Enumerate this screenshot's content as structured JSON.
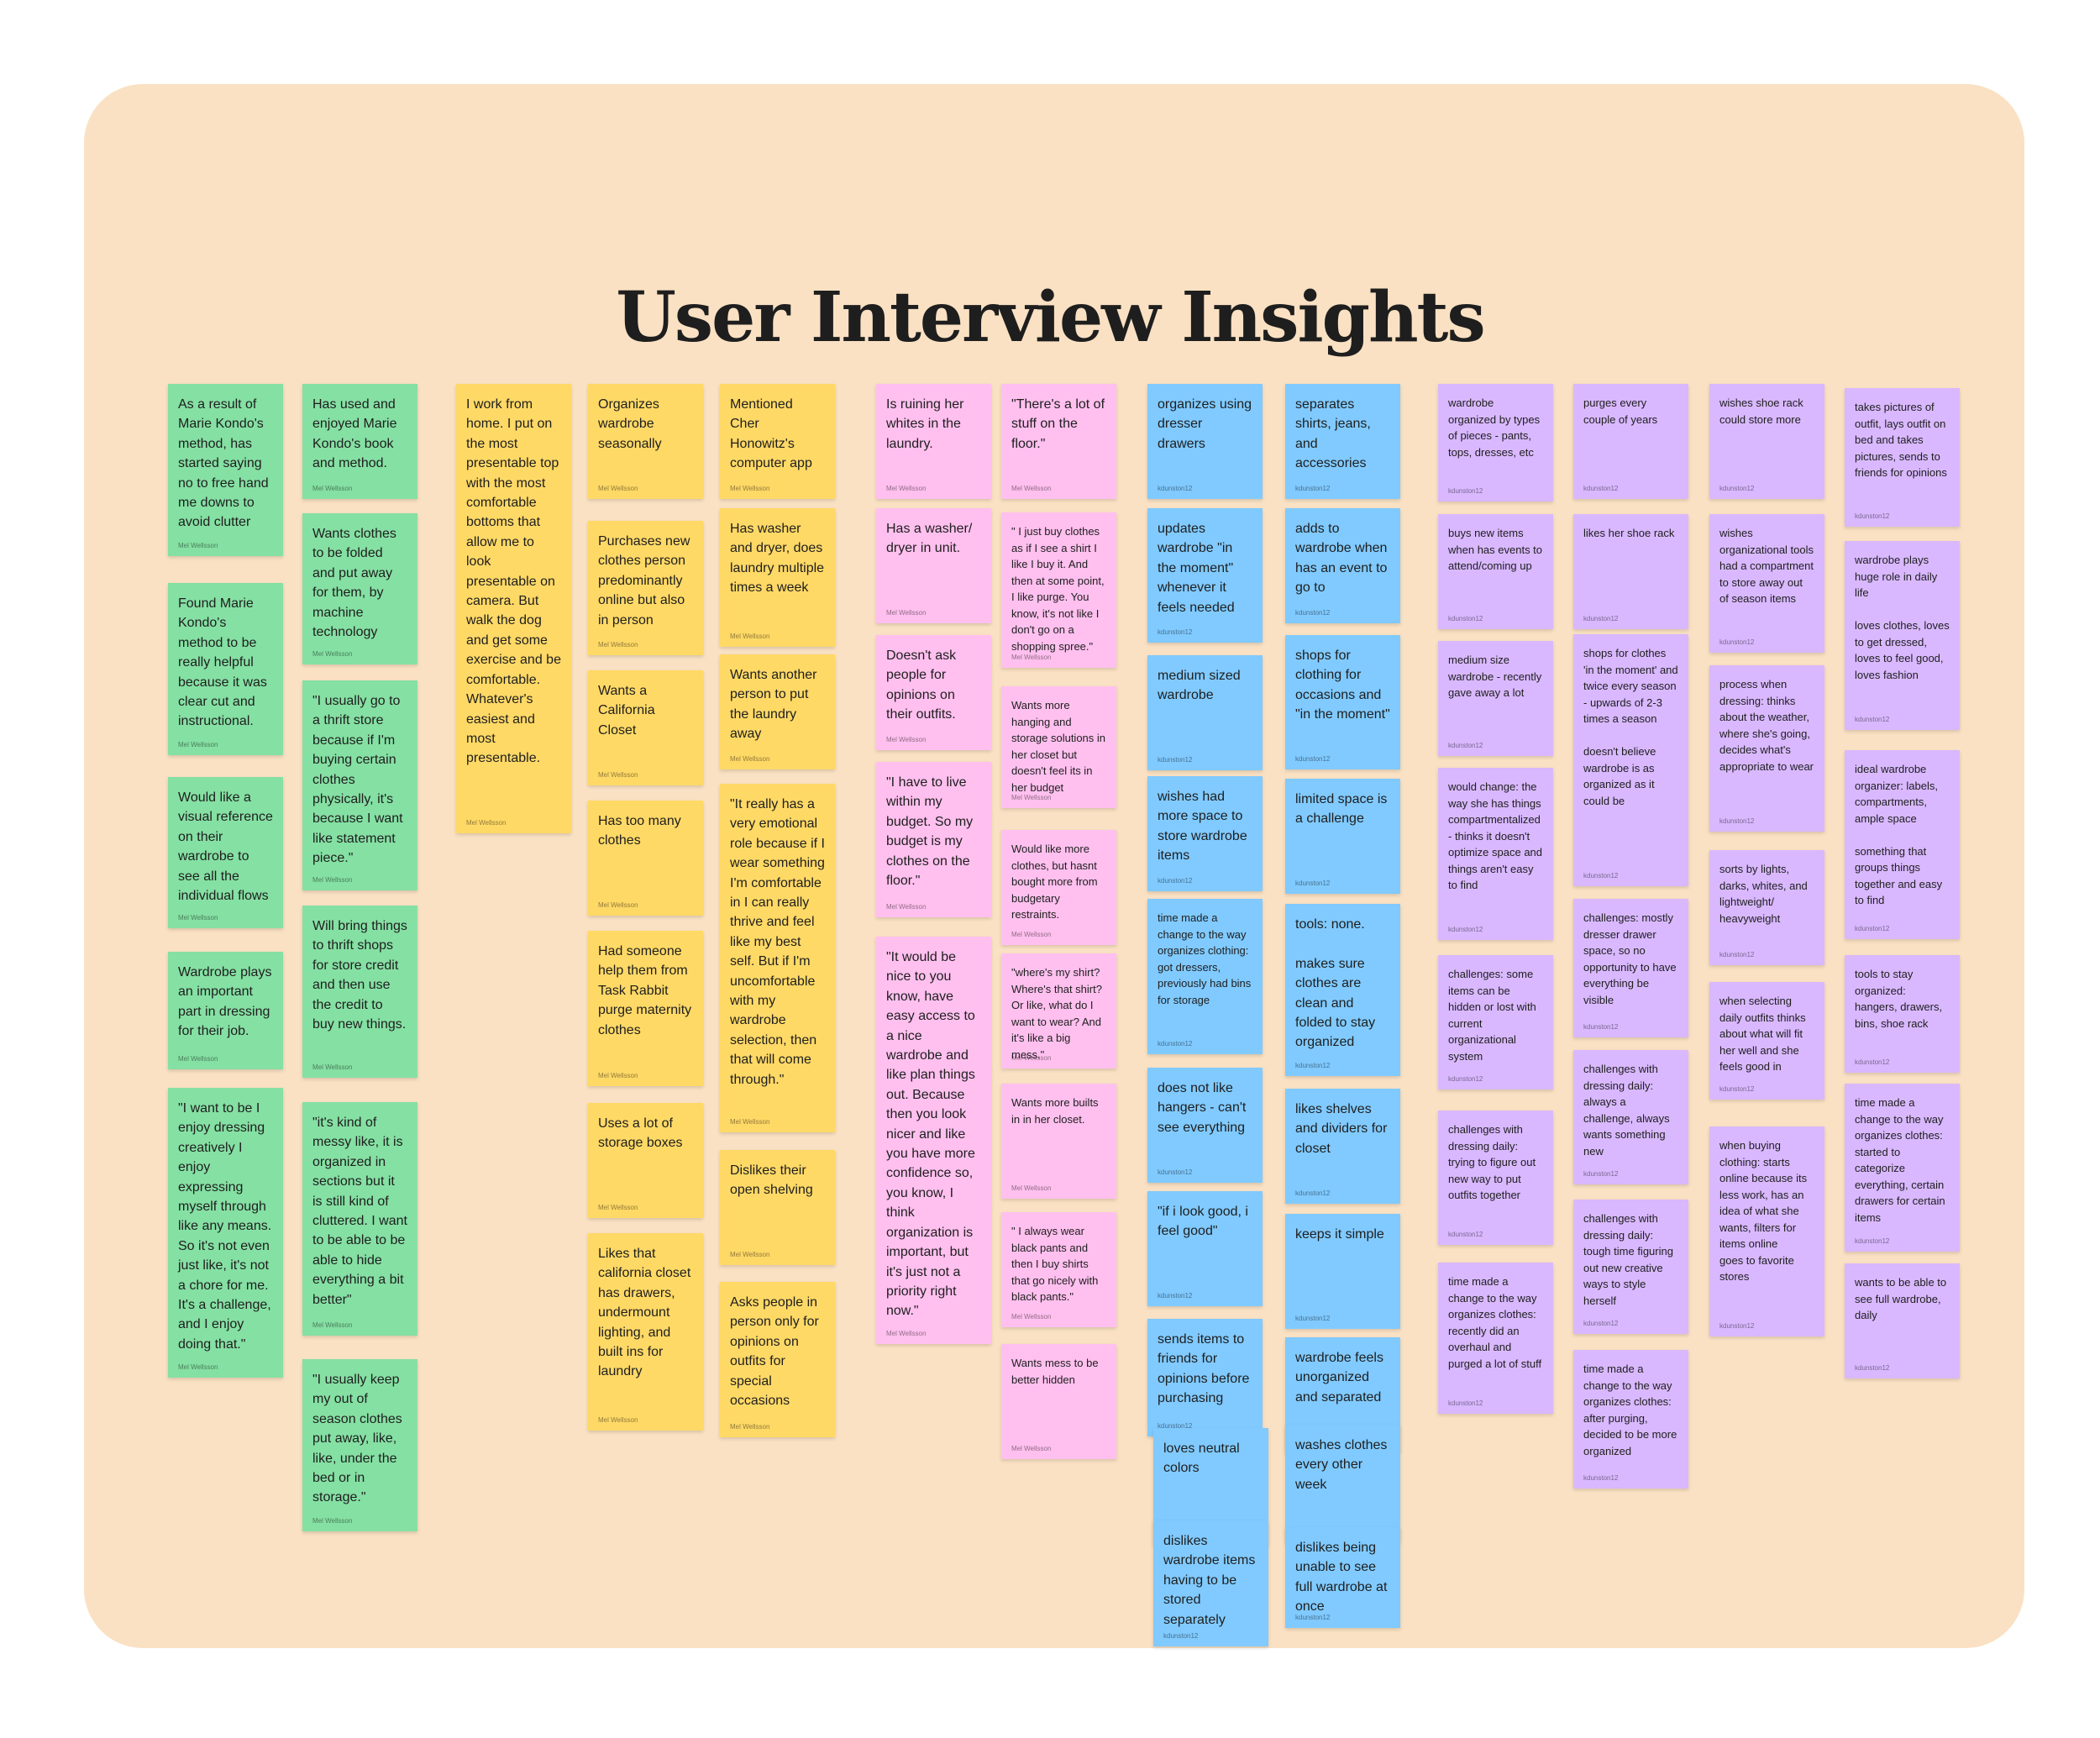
{
  "title": "User Interview Insights",
  "colors": {
    "board_background": "#fae1c3",
    "green": "#85e0a3",
    "yellow": "#ffd966",
    "pink": "#ffc0ef",
    "blue": "#80caff",
    "purple": "#d9b8ff"
  },
  "authors": {
    "mel": "Mel Wellsson",
    "k": "kdunston12"
  },
  "notes": {
    "g1": "As a result of Marie Kondo's method, has started saying no to free hand me downs to avoid clutter",
    "g2": "Found Marie Kondo's method to be really helpful because it was clear cut and instructional.",
    "g3": "Would like a visual reference on their wardrobe to see all the individual flows",
    "g4": "Wardrobe plays an important part in dressing for their job.",
    "g5": "\"I want to be I enjoy dressing creatively I enjoy expressing myself through like any means. So it's not even just like, it's not a chore for me. It's a challenge, and I enjoy doing that.\"",
    "g6": "Has used and enjoyed Marie Kondo's book and method.",
    "g7": "Wants clothes to be folded and put away for them, by machine technology",
    "g8": "\"I usually go to a thrift store because if I'm buying certain clothes physically, it's because I want like statement piece.\"",
    "g9": "Will bring things to thrift shops for store credit and then use the credit to buy new things.",
    "g10": "\"it's kind of messy like, it is organized in sections but it is still kind of cluttered. I want to be able to be able to hide everything a bit better\"",
    "g11": "\"I usually keep my out of season clothes put away, like, like, under the bed or in storage.\"",
    "y1": "I work from home. I put on the most presentable top with the most comfortable bottoms that allow me to look presentable on camera. But walk the dog and get some exercise and be comfortable. Whatever's easiest and most presentable.",
    "y2": "Organizes wardrobe seasonally",
    "y3": "Purchases new clothes person predominantly online but also in person",
    "y4": "Wants a California Closet",
    "y5": "Has too many clothes",
    "y6": "Had someone help them from Task Rabbit purge maternity clothes",
    "y7": "Uses a lot of storage boxes",
    "y8": "Likes that california closet has drawers, undermount lighting, and built ins for laundry",
    "y9": "Mentioned Cher Honowitz's computer app",
    "y10": "Has washer and dryer, does laundry multiple times a week",
    "y11": "Wants another person to put the laundry away",
    "y12": "\"It really has a very emotional role because if I wear something I'm comfortable in I can really thrive and feel like my best self. But if I'm uncomfortable with my wardrobe selection, then that will come through.\"",
    "y13": "Dislikes their open shelving",
    "y14": "Asks people in person only for opinions on outfits for special occasions",
    "p1": "Is ruining her whites in the laundry.",
    "p2": "Has a washer/ dryer in unit.",
    "p3": "Doesn't ask people for opinions on their outfits.",
    "p4": "\"I have to live within my budget. So my budget is my clothes on the floor.\"",
    "p5": "\"It would be nice to you know, have easy access to a nice wardrobe and like plan things out. Because then you look nicer and like you have more confidence so, you know, I think organization is important, but it's just not a priority right now.\"",
    "p6": "\"There's a lot of stuff on the floor.\"",
    "p7": "\" I just buy clothes as if I see a shirt I like I buy it. And then at some point, I like purge. You know, it's not like I don't go on a shopping spree.\"",
    "p8": "Wants more hanging and storage solutions in her closet but doesn't feel its in her budget",
    "p9": "Would like more clothes, but hasnt bought more from budgetary restraints.",
    "p10": "\"where's my shirt? Where's that shirt? Or like, what do I want to wear? And it's like a big mess.\"",
    "p11": "Wants more builts in in her closet.",
    "p12": "\" I always wear black pants and then I buy shirts that go nicely with black pants.\"",
    "p13": "Wants mess to be better hidden",
    "b1": " organizes using dresser drawers",
    "b2": "updates wardrobe \"in the moment\" whenever it feels needed",
    "b3": "medium sized wardrobe",
    "b4": "wishes had more space to store wardrobe items",
    "b5": "time made a change to the way organizes clothing:  got dressers, previously had bins for storage",
    "b6": "does not like hangers - can't see everything",
    "b7": "\"if i look good, i feel good\"",
    "b8": "sends items to friends for opinions before purchasing",
    "b9": "loves neutral colors",
    "b10": "dislikes wardrobe items having to be stored separately",
    "b11": "separates shirts, jeans, and accessories",
    "b12": "adds to wardrobe when has an event to go to",
    "b13": "shops for clothing for occasions and \"in the moment\"",
    "b14": "limited space is a challenge",
    "b15": "tools: none.\n\nmakes sure clothes are clean and folded to stay organized",
    "b16": "likes shelves and dividers for closet",
    "b17": "keeps it simple",
    "b18": "wardrobe feels unorganized and separated",
    "b19": "washes clothes every other week",
    "b20": "dislikes being unable to see full wardrobe at once",
    "u1": "wardrobe organized by types of pieces - pants, tops, dresses, etc",
    "u2": "buys new items when has events to attend/coming up",
    "u3": "medium size wardrobe - recently gave away a lot",
    "u4": "would change: the way she has things compartmentalized - thinks it doesn't optimize space and things aren't easy to find",
    "u5": "challenges: some items can be hidden or lost with current organizational system",
    "u6": "challenges with dressing daily: trying to figure out new way to put outfits together",
    "u7": "time made a change to the way organizes clothes: recently did an overhaul and purged a lot of stuff",
    "u8": "purges every couple of years",
    "u9": "likes her shoe rack",
    "u10": "shops for clothes 'in the moment' and twice every season - upwards of 2-3 times a season\n\ndoesn't believe wardrobe is as organized as it could be",
    "u11": "challenges: mostly dresser drawer space, so no opportunity to have everything be visible",
    "u12": "challenges with dressing daily: always a challenge, always wants something new",
    "u13": "challenges with dressing daily: tough time figuring out new creative ways to style herself",
    "u14": "time made a change to the way organizes clothes: after purging, decided to be more organized",
    "u15": "wishes shoe rack could store more",
    "u16": "wishes organizational tools had a compartment to store away out of season items",
    "u17": "process when dressing: thinks about the weather, where she's going, decides what's appropriate to wear",
    "u18": "sorts by lights, darks, whites, and lightweight/ heavyweight",
    "u19": "when selecting daily outfits thinks about what will fit her well and she feels good in",
    "u20": "when buying clothing: starts online because its less work, has an idea of what she wants, filters for items online\ngoes to favorite stores",
    "u21": "takes pictures of outfit, lays outfit on bed and takes pictures, sends to friends for opinions",
    "u22": "wardrobe plays huge role in daily life\n\nloves clothes, loves to get dressed, loves to feel good, loves fashion",
    "u23": "ideal wardrobe organizer: labels, compartments, ample space\n\nsomething that groups things together and easy to find",
    "u24": "tools to stay organized: hangers, drawers, bins, shoe rack",
    "u25": "time made a change to the way organizes clothes: started to categorize everything, certain drawers for certain items",
    "u26": "wants to be able to see full wardrobe, daily"
  }
}
